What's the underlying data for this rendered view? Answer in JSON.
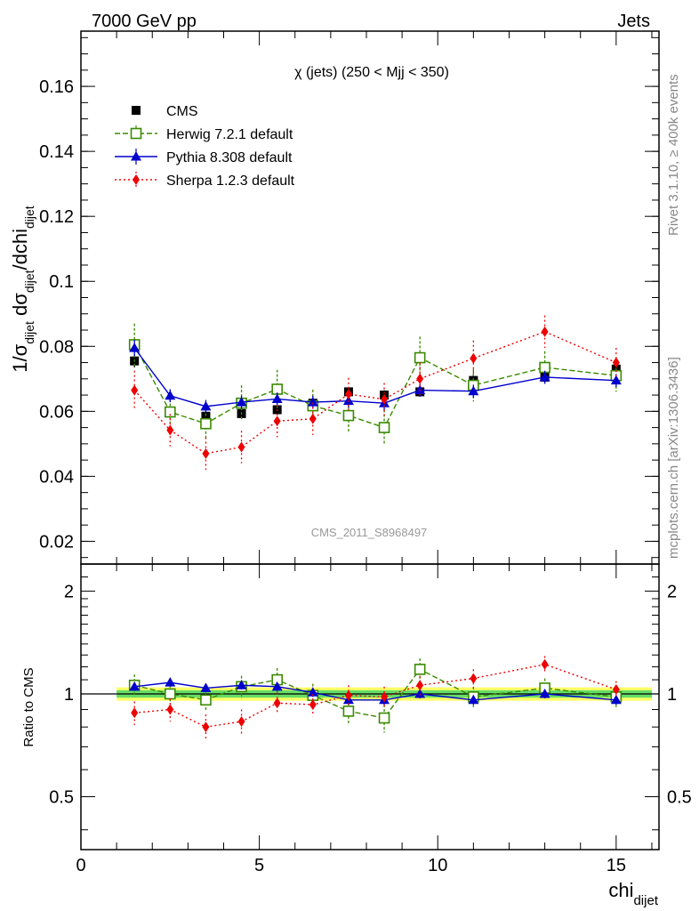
{
  "header": {
    "left": "7000 GeV pp",
    "right": "Jets"
  },
  "side_labels": {
    "rivet": "Rivet 3.1.10, ≥ 400k events",
    "mcplots": "mcplots.cern.ch [arXiv:1306.3436]"
  },
  "watermark": "CMS_2011_S8968497",
  "colors": {
    "cms": "#000000",
    "herwig": "#3a8a00",
    "pythia": "#0000cc",
    "sherpa": "#ee0000",
    "band_inner": "#66dd66",
    "band_outer": "#ffff66"
  },
  "chart_data": [
    {
      "id": "main",
      "type": "scatter",
      "title": "χ (jets) (250 < Mjj <  350)",
      "ylabel": "1/σdijet dσdijet/dchidijet",
      "xlim": [
        0,
        16.2
      ],
      "ylim": [
        0.013,
        0.177
      ],
      "yticks": [
        0.02,
        0.04,
        0.06,
        0.08,
        0.1,
        0.12,
        0.14,
        0.16
      ],
      "ytick_labels": [
        "0.02",
        "0.04",
        "0.06",
        "0.08",
        "0.1",
        "0.12",
        "0.14",
        "0.16"
      ],
      "legend_position": "top-left",
      "x": [
        1.5,
        2.5,
        3.5,
        4.5,
        5.5,
        6.5,
        7.5,
        8.5,
        9.5,
        11,
        13,
        15
      ],
      "series": [
        {
          "name": "CMS",
          "key": "cms",
          "marker": "square-filled",
          "values": [
            0.0755,
            0.0597,
            0.0585,
            0.0593,
            0.0605,
            0.0625,
            0.066,
            0.065,
            0.066,
            0.0695,
            0.0705,
            0.073
          ],
          "errors": [
            0.002,
            0.0015,
            0.0015,
            0.0015,
            0.0015,
            0.0015,
            0.0015,
            0.0015,
            0.0015,
            0.002,
            0.002,
            0.002
          ]
        },
        {
          "name": "Herwig 7.2.1 default",
          "key": "herwig",
          "marker": "square-open",
          "line": "dashed",
          "values": [
            0.0805,
            0.0598,
            0.0562,
            0.0625,
            0.0668,
            0.0617,
            0.0587,
            0.055,
            0.0765,
            0.068,
            0.0735,
            0.071
          ],
          "errors": [
            0.0065,
            0.004,
            0.0045,
            0.0055,
            0.006,
            0.005,
            0.0055,
            0.0055,
            0.0065,
            0.005,
            0.005,
            0.005
          ]
        },
        {
          "name": "Pythia 8.308 default",
          "key": "pythia",
          "marker": "triangle-filled",
          "line": "solid",
          "values": [
            0.0795,
            0.0648,
            0.0615,
            0.0628,
            0.0638,
            0.0628,
            0.0632,
            0.0625,
            0.0665,
            0.0662,
            0.0705,
            0.0695
          ],
          "errors": [
            0.0025,
            0.002,
            0.002,
            0.002,
            0.002,
            0.002,
            0.002,
            0.002,
            0.002,
            0.002,
            0.002,
            0.002
          ]
        },
        {
          "name": "Sherpa 1.2.3 default",
          "key": "sherpa",
          "marker": "diamond-filled",
          "line": "dotted",
          "values": [
            0.0665,
            0.0542,
            0.047,
            0.049,
            0.057,
            0.0577,
            0.0653,
            0.0637,
            0.07,
            0.0763,
            0.0845,
            0.075
          ],
          "errors": [
            0.006,
            0.005,
            0.005,
            0.005,
            0.005,
            0.005,
            0.005,
            0.005,
            0.005,
            0.0055,
            0.005,
            0.0045
          ]
        }
      ]
    },
    {
      "id": "ratio",
      "type": "scatter",
      "ylabel": "Ratio to CMS",
      "xlabel": "chidijet",
      "xlim": [
        0,
        16.2
      ],
      "ylim": [
        0.35,
        2.4
      ],
      "log_y": true,
      "yticks": [
        0.5,
        1,
        2
      ],
      "ytick_labels": [
        "0.5",
        "1",
        "2"
      ],
      "xticks": [
        0,
        5,
        10,
        15
      ],
      "xtick_labels": [
        "0",
        "5",
        "10",
        "15"
      ],
      "band": {
        "x_range": [
          1,
          16
        ],
        "inner": [
          0.975,
          1.025
        ],
        "outer": [
          0.955,
          1.045
        ]
      },
      "x": [
        1.5,
        2.5,
        3.5,
        4.5,
        5.5,
        6.5,
        7.5,
        8.5,
        9.5,
        11,
        13,
        15
      ],
      "series": [
        {
          "name": "Herwig 7.2.1 default",
          "key": "herwig",
          "marker": "square-open",
          "line": "dashed",
          "values": [
            1.06,
            1.0,
            0.96,
            1.05,
            1.1,
            0.99,
            0.89,
            0.85,
            1.18,
            0.98,
            1.04,
            0.98
          ],
          "errors": [
            0.08,
            0.06,
            0.07,
            0.08,
            0.09,
            0.08,
            0.08,
            0.08,
            0.09,
            0.07,
            0.07,
            0.07
          ]
        },
        {
          "name": "Pythia 8.308 default",
          "key": "pythia",
          "marker": "triangle-filled",
          "line": "solid",
          "values": [
            1.05,
            1.08,
            1.04,
            1.06,
            1.05,
            1.01,
            0.96,
            0.96,
            1.0,
            0.96,
            1.0,
            0.96
          ],
          "errors": [
            0.03,
            0.03,
            0.03,
            0.03,
            0.03,
            0.03,
            0.03,
            0.03,
            0.03,
            0.03,
            0.03,
            0.03
          ]
        },
        {
          "name": "Sherpa 1.2.3 default",
          "key": "sherpa",
          "marker": "diamond-filled",
          "line": "dotted",
          "values": [
            0.88,
            0.9,
            0.8,
            0.83,
            0.94,
            0.93,
            0.99,
            0.98,
            1.06,
            1.11,
            1.22,
            1.03
          ],
          "errors": [
            0.07,
            0.07,
            0.07,
            0.07,
            0.07,
            0.07,
            0.07,
            0.07,
            0.07,
            0.07,
            0.07,
            0.06
          ]
        }
      ]
    }
  ]
}
